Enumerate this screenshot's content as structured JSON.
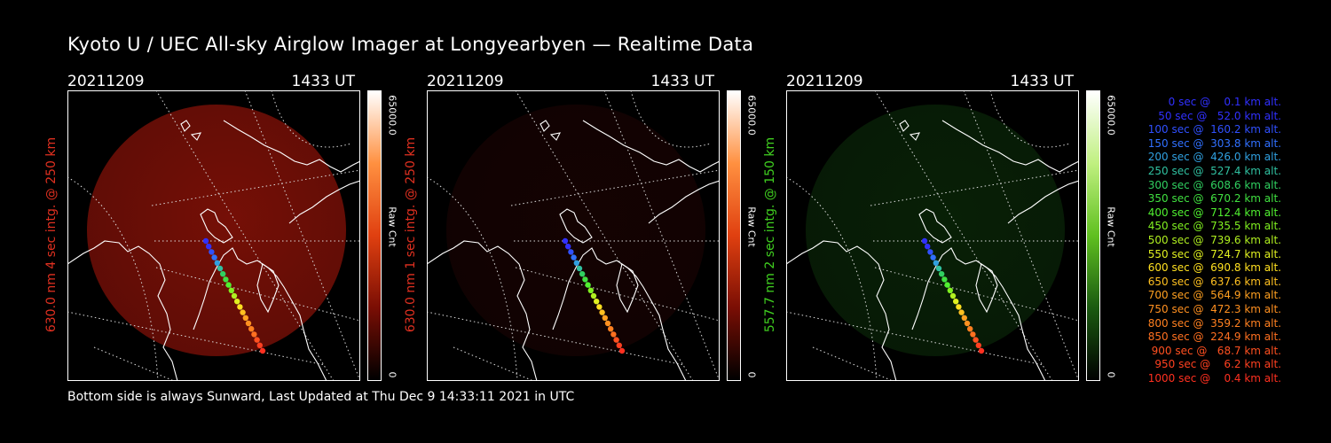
{
  "title": "Kyoto U / UEC All-sky Airglow Imager at Longyearbyen — Realtime Data",
  "footer": "Bottom side is always Sunward, Last Updated at Thu Dec  9 14:33:11 2021 in UTC",
  "panels": [
    {
      "date": "20211209",
      "time": "1433 UT",
      "ylabel": "630.0 nm 4 sec intg. @ 250 km",
      "label_color": "#e03020",
      "colorbar_max": "65000.0",
      "colorbar_min": "0",
      "colorbar_unit": "Raw Cnt",
      "image_color": "#8a1208",
      "image_level": 0.85,
      "colorbar_colors": [
        "#000000",
        "#7a0e04",
        "#e04010",
        "#ff9040",
        "#ffffff"
      ]
    },
    {
      "date": "20211209",
      "time": "1433 UT",
      "ylabel": "630.0 nm 1 sec intg. @ 250 km",
      "label_color": "#e03020",
      "colorbar_max": "65000.0",
      "colorbar_min": "0",
      "colorbar_unit": "Raw Cnt",
      "image_color": "#3a0806",
      "image_level": 0.35,
      "colorbar_colors": [
        "#000000",
        "#7a0e04",
        "#e04010",
        "#ff9040",
        "#ffffff"
      ]
    },
    {
      "date": "20211209",
      "time": "1433 UT",
      "ylabel": "557.7 nm 2 sec intg. @ 150 km",
      "label_color": "#40d020",
      "colorbar_max": "65000.0",
      "colorbar_min": "0",
      "colorbar_unit": "Raw Cnt",
      "image_color": "#0f3a0c",
      "image_level": 0.55,
      "colorbar_colors": [
        "#000000",
        "#1a5a10",
        "#60c020",
        "#c0f080",
        "#ffffff"
      ]
    }
  ],
  "legend": [
    {
      "text": "   0 sec @    0.1 km alt.",
      "color": "#3030ff"
    },
    {
      "text": "  50 sec @   52.0 km alt.",
      "color": "#3030ff"
    },
    {
      "text": " 100 sec @  160.2 km alt.",
      "color": "#3050ff"
    },
    {
      "text": " 150 sec @  303.8 km alt.",
      "color": "#3070ff"
    },
    {
      "text": " 200 sec @  426.0 km alt.",
      "color": "#30a0e0"
    },
    {
      "text": " 250 sec @  527.4 km alt.",
      "color": "#30c0a0"
    },
    {
      "text": " 300 sec @  608.6 km alt.",
      "color": "#30d060"
    },
    {
      "text": " 350 sec @  670.2 km alt.",
      "color": "#40e040"
    },
    {
      "text": " 400 sec @  712.4 km alt.",
      "color": "#50f030"
    },
    {
      "text": " 450 sec @  735.5 km alt.",
      "color": "#80f020"
    },
    {
      "text": " 500 sec @  739.6 km alt.",
      "color": "#b0f020"
    },
    {
      "text": " 550 sec @  724.7 km alt.",
      "color": "#e0f020"
    },
    {
      "text": " 600 sec @  690.8 km alt.",
      "color": "#ffe020"
    },
    {
      "text": " 650 sec @  637.6 km alt.",
      "color": "#ffc020"
    },
    {
      "text": " 700 sec @  564.9 km alt.",
      "color": "#ffa020"
    },
    {
      "text": " 750 sec @  472.3 km alt.",
      "color": "#ff9020"
    },
    {
      "text": " 800 sec @  359.2 km alt.",
      "color": "#ff8020"
    },
    {
      "text": " 850 sec @  224.9 km alt.",
      "color": "#ff7020"
    },
    {
      "text": " 900 sec @   68.7 km alt.",
      "color": "#ff5020"
    },
    {
      "text": " 950 sec @    6.2 km alt.",
      "color": "#ff4020"
    },
    {
      "text": "1000 sec @    0.4 km alt.",
      "color": "#ff3020"
    }
  ]
}
